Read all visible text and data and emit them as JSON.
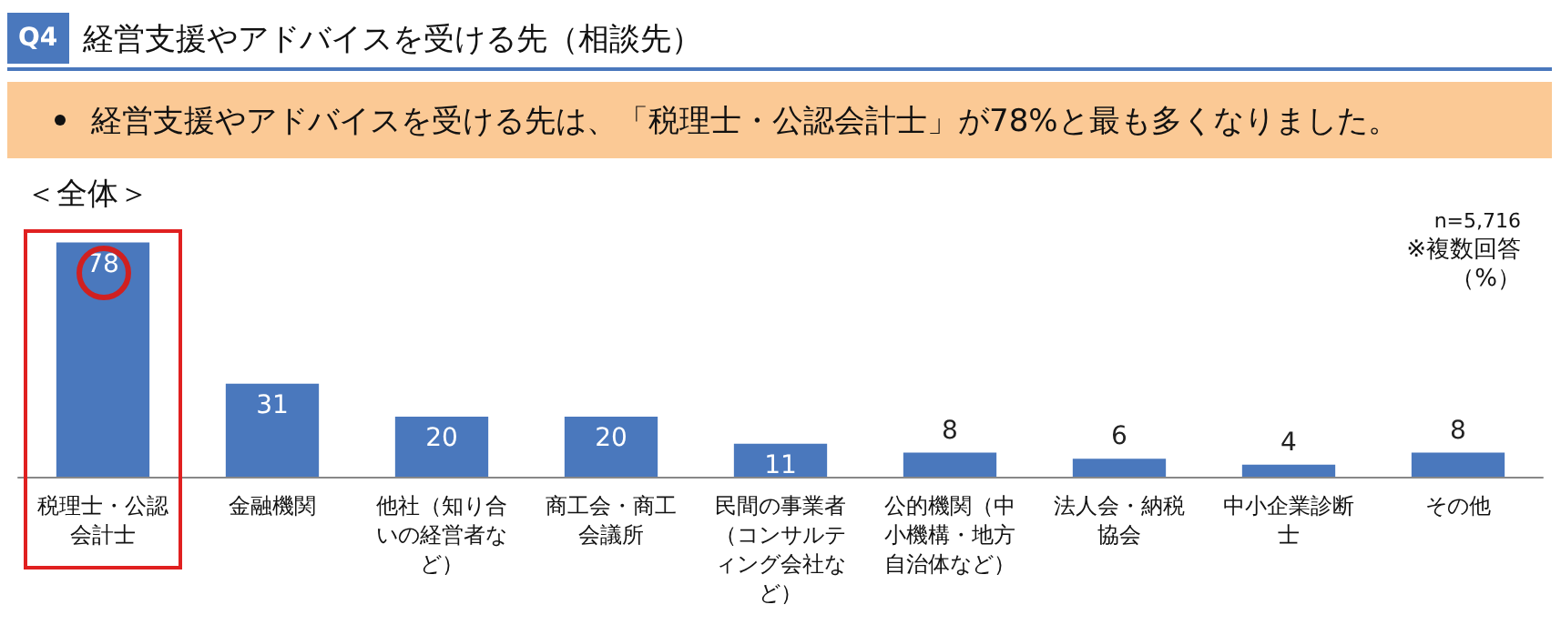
{
  "chart_data": {
    "type": "bar",
    "title": "経営支援やアドバイスを受ける先（相談先）",
    "subtitle": "経営支援やアドバイスを受ける先は、「税理士・公認会計士」が78%と最も多くなりました。",
    "annotations": [
      "Q4",
      "＜全体＞",
      "n=5,716",
      "※複数回答",
      "（%）"
    ],
    "categories": [
      "税理士・公認会計士",
      "金融機関",
      "他社（知り合いの経営者など）",
      "商工会・商工会議所",
      "民間の事業者（コンサルティング会社など）",
      "公的機関（中小機構・地方自治体など）",
      "法人会・納税協会",
      "中小企業診断士",
      "その他"
    ],
    "values": [
      78,
      31,
      20,
      20,
      11,
      8,
      6,
      4,
      8
    ],
    "color": "#4a78bd",
    "data_labels": true,
    "grid": false
  }
}
